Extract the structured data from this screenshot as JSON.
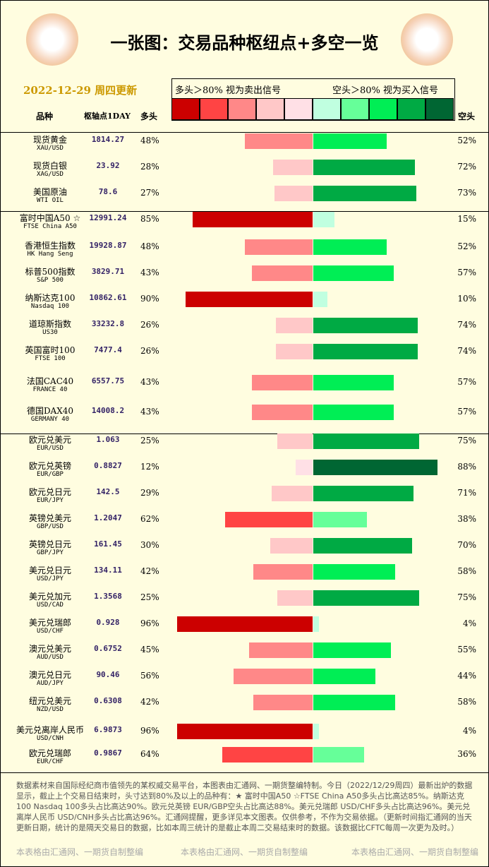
{
  "header": {
    "title": "一张图：交易品种枢纽点+多空一览",
    "date": "2022-12-29 周四更新",
    "legend_long": "多头＞80% 视为卖出信号",
    "legend_short": "空头＞80% 视为买入信号"
  },
  "columns": {
    "name": "品种",
    "pivot": "枢轴点1DAY",
    "long": "多头",
    "short": "空头"
  },
  "scale_colors": [
    "#cc0000",
    "#ff4444",
    "#ff8888",
    "#ffc8c8",
    "#ffe0e6",
    "#c0ffe0",
    "#66ff99",
    "#00ee55",
    "#00aa44",
    "#006633"
  ],
  "groups": [
    {
      "rows": [
        {
          "name": "现货黄金",
          "code": "XAU/USD",
          "pivot": "1814.27",
          "long": 48,
          "long_label": "48%",
          "short": 52,
          "short_label": "52%"
        },
        {
          "name": "现货白银",
          "code": "XAG/USD",
          "pivot": "23.92",
          "long": 28,
          "long_label": "28%",
          "short": 72,
          "short_label": "72%"
        },
        {
          "name": "美国原油",
          "code": "WTI OIL",
          "pivot": "78.6",
          "long": 27,
          "long_label": "27%",
          "short": 73,
          "short_label": "73%"
        }
      ]
    },
    {
      "rows": [
        {
          "name": "富时中国A50 ☆",
          "code": "FTSE China A50",
          "pivot": "12991.24",
          "long": 85,
          "long_label": "85%",
          "short": 15,
          "short_label": "15%"
        },
        {
          "name": "香港恒生指数",
          "code": "HK Hang Seng",
          "pivot": "19928.87",
          "long": 48,
          "long_label": "48%",
          "short": 52,
          "short_label": "52%"
        },
        {
          "name": "标普500指数",
          "code": "S&P 500",
          "pivot": "3829.71",
          "long": 43,
          "long_label": "43%",
          "short": 57,
          "short_label": "57%"
        },
        {
          "name": "纳斯达克100",
          "code": "Nasdaq 100",
          "pivot": "10862.61",
          "long": 90,
          "long_label": "90%",
          "short": 10,
          "short_label": "10%"
        },
        {
          "name": "道琼斯指数",
          "code": "US30",
          "pivot": "33232.8",
          "long": 26,
          "long_label": "26%",
          "short": 74,
          "short_label": "74%"
        },
        {
          "name": "英国富时100",
          "code": "FTSE 100",
          "pivot": "7477.4",
          "long": 26,
          "long_label": "26%",
          "short": 74,
          "short_label": "74%"
        },
        {
          "name": "法国CAC40",
          "code": "FRANCE 40",
          "pivot": "6557.75",
          "long": 43,
          "long_label": "43%",
          "short": 57,
          "short_label": "57%"
        },
        {
          "name": "德国DAX40",
          "code": "GERMANY 40",
          "pivot": "14008.2",
          "long": 43,
          "long_label": "43%",
          "short": 57,
          "short_label": "57%"
        }
      ]
    },
    {
      "rows": [
        {
          "name": "欧元兑美元",
          "code": "EUR/USD",
          "pivot": "1.063",
          "long": 25,
          "long_label": "25%",
          "short": 75,
          "short_label": "75%"
        },
        {
          "name": "欧元兑英镑",
          "code": "EUR/GBP",
          "pivot": "0.8827",
          "long": 12,
          "long_label": "12%",
          "short": 88,
          "short_label": "88%"
        },
        {
          "name": "欧元兑日元",
          "code": "EUR/JPY",
          "pivot": "142.5",
          "long": 29,
          "long_label": "29%",
          "short": 71,
          "short_label": "71%"
        },
        {
          "name": "英镑兑美元",
          "code": "GBP/USD",
          "pivot": "1.2047",
          "long": 62,
          "long_label": "62%",
          "short": 38,
          "short_label": "38%"
        },
        {
          "name": "英镑兑日元",
          "code": "GBP/JPY",
          "pivot": "161.45",
          "long": 30,
          "long_label": "30%",
          "short": 70,
          "short_label": "70%"
        },
        {
          "name": "美元兑日元",
          "code": "USD/JPY",
          "pivot": "134.11",
          "long": 42,
          "long_label": "42%",
          "short": 58,
          "short_label": "58%"
        },
        {
          "name": "美元兑加元",
          "code": "USD/CAD",
          "pivot": "1.3568",
          "long": 25,
          "long_label": "25%",
          "short": 75,
          "short_label": "75%"
        },
        {
          "name": "美元兑瑞郎",
          "code": "USD/CHF",
          "pivot": "0.928",
          "long": 96,
          "long_label": "96%",
          "short": 4,
          "short_label": "4%"
        },
        {
          "name": "澳元兑美元",
          "code": "AUD/USD",
          "pivot": "0.6752",
          "long": 45,
          "long_label": "45%",
          "short": 55,
          "short_label": "55%"
        },
        {
          "name": "澳元兑日元",
          "code": "AUD/JPY",
          "pivot": "90.46",
          "long": 56,
          "long_label": "56%",
          "short": 44,
          "short_label": "44%"
        },
        {
          "name": "纽元兑美元",
          "code": "NZD/USD",
          "pivot": "0.6308",
          "long": 42,
          "long_label": "42%",
          "short": 58,
          "short_label": "58%"
        },
        {
          "name": "美元兑离岸人民币",
          "code": "USD/CNH",
          "pivot": "6.9873",
          "long": 96,
          "long_label": "96%",
          "short": 4,
          "short_label": "4%"
        },
        {
          "name": "欧元兑瑞郎",
          "code": "EUR/CHF",
          "pivot": "0.9867",
          "long": 64,
          "long_label": "64%",
          "short": 36,
          "short_label": "36%"
        }
      ]
    }
  ],
  "footer": {
    "note": "数据素材来自国际经纪商市值领先的某权威交易平台，本图表由汇通网、一期货整编特制。今日（2022/12/29周四）最新出炉的数据显示，截止上个交易日结束时，头寸达到80%及以上的品种有：★ 富时中国A50 ☆FTSE China A50多头占比高达85%。纳斯达克100 Nasdaq 100多头占比高达90%。欧元兑英镑 EUR/GBP空头占比高达88%。美元兑瑞郎 USD/CHF多头占比高达96%。美元兑离岸人民币 USD/CNH多头占比高达96%。汇通网提醒，更多详见本文图表。仅供参考，不作为交易依据。（更新时间指汇通网的当天更新日期，统计的是隔天交易日的数据，比如本周三统计的是截止本周二交易结束时的数据。该数据比CFTC每周一次更为及时。）",
    "watermarks": [
      "本表格由汇通网、一期货自制整编",
      "本表格由汇通网、一期货自制整编",
      "本表格由汇通网、一期货自制整编"
    ]
  }
}
